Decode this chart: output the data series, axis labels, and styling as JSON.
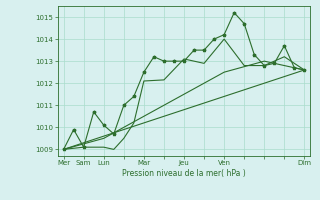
{
  "bg_color": "#d8f0ef",
  "grid_color": "#aaddcc",
  "line_color": "#2d6e2d",
  "title": "Pression niveau de la mer( hPa )",
  "ylim": [
    1008.7,
    1015.5
  ],
  "yticks": [
    1009,
    1010,
    1011,
    1012,
    1013,
    1014,
    1015
  ],
  "xtick_labels": [
    "Mer",
    "Sam",
    "Lun",
    "",
    "Mar",
    "",
    "Jeu",
    "",
    "Ven",
    "",
    "",
    "",
    "Dim"
  ],
  "xtick_positions": [
    0,
    1,
    2,
    3,
    4,
    5,
    6,
    7,
    8,
    9,
    10,
    11,
    12
  ],
  "lines": [
    {
      "x": [
        0,
        0.5,
        1,
        1.5,
        2,
        2.5,
        3,
        3.5,
        4,
        4.5,
        5,
        5.5,
        6,
        6.5,
        7,
        7.5,
        8,
        8.5,
        9,
        9.5,
        10,
        10.5,
        11,
        11.5,
        12
      ],
      "y": [
        1009.0,
        1009.9,
        1009.1,
        1010.7,
        1010.1,
        1009.7,
        1011.0,
        1011.4,
        1012.5,
        1013.2,
        1013.0,
        1013.0,
        1013.0,
        1013.5,
        1013.5,
        1014.0,
        1014.2,
        1015.2,
        1014.7,
        1013.3,
        1012.8,
        1012.9,
        1013.7,
        1012.7,
        1012.6
      ]
    },
    {
      "x": [
        0,
        1,
        2,
        2.5,
        3,
        3.5,
        4,
        5,
        6,
        7,
        8,
        9,
        10,
        11,
        12
      ],
      "y": [
        1009.0,
        1009.1,
        1009.1,
        1009.0,
        1009.5,
        1010.2,
        1012.1,
        1012.15,
        1013.1,
        1012.9,
        1014.0,
        1012.8,
        1012.8,
        1013.2,
        1012.6
      ]
    },
    {
      "x": [
        0,
        2,
        4,
        6,
        8,
        10,
        12
      ],
      "y": [
        1009.0,
        1009.5,
        1010.5,
        1011.5,
        1012.5,
        1013.0,
        1012.6
      ]
    },
    {
      "x": [
        0,
        12
      ],
      "y": [
        1009.0,
        1012.6
      ]
    }
  ],
  "markers_x": [
    0,
    0.5,
    1,
    1.5,
    2,
    2.5,
    3,
    3.5,
    4,
    4.5,
    5,
    5.5,
    6,
    6.5,
    7,
    7.5,
    8,
    8.5,
    9,
    9.5,
    10,
    10.5,
    11,
    11.5,
    12
  ],
  "markers_y": [
    1009.0,
    1009.9,
    1009.1,
    1010.7,
    1010.1,
    1009.7,
    1011.0,
    1011.4,
    1012.5,
    1013.2,
    1013.0,
    1013.0,
    1013.0,
    1013.5,
    1013.5,
    1014.0,
    1014.2,
    1015.2,
    1014.7,
    1013.3,
    1012.8,
    1012.9,
    1013.7,
    1012.7,
    1012.6
  ]
}
